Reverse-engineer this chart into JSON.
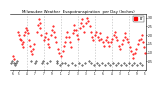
{
  "title": "Milwaukee Weather  Evapotranspiration  per Day (Inches)",
  "background_color": "#ffffff",
  "plot_bg_color": "#ffffff",
  "grid_color": "#bbbbbb",
  "x_min": 0,
  "x_max": 152,
  "y_min": 0.0,
  "y_max": 0.32,
  "y_ticks": [
    0.05,
    0.1,
    0.15,
    0.2,
    0.25,
    0.3
  ],
  "y_tick_labels": [
    ".05",
    ".10",
    ".15",
    ".20",
    ".25",
    ".30"
  ],
  "legend_label": "ET",
  "legend_color": "#ff0000",
  "red_data": [
    [
      3,
      0.08
    ],
    [
      4,
      0.06
    ],
    [
      9,
      0.22
    ],
    [
      10,
      0.2
    ],
    [
      11,
      0.18
    ],
    [
      12,
      0.17
    ],
    [
      13,
      0.15
    ],
    [
      14,
      0.13
    ],
    [
      15,
      0.16
    ],
    [
      16,
      0.2
    ],
    [
      17,
      0.22
    ],
    [
      18,
      0.24
    ],
    [
      19,
      0.23
    ],
    [
      20,
      0.21
    ],
    [
      21,
      0.17
    ],
    [
      22,
      0.14
    ],
    [
      23,
      0.11
    ],
    [
      25,
      0.09
    ],
    [
      26,
      0.12
    ],
    [
      27,
      0.15
    ],
    [
      30,
      0.22
    ],
    [
      31,
      0.26
    ],
    [
      32,
      0.29
    ],
    [
      33,
      0.27
    ],
    [
      34,
      0.24
    ],
    [
      35,
      0.2
    ],
    [
      38,
      0.17
    ],
    [
      39,
      0.19
    ],
    [
      40,
      0.21
    ],
    [
      42,
      0.18
    ],
    [
      43,
      0.15
    ],
    [
      44,
      0.13
    ],
    [
      46,
      0.2
    ],
    [
      47,
      0.23
    ],
    [
      48,
      0.25
    ],
    [
      49,
      0.22
    ],
    [
      50,
      0.19
    ],
    [
      51,
      0.16
    ],
    [
      54,
      0.12
    ],
    [
      55,
      0.1
    ],
    [
      57,
      0.08
    ],
    [
      59,
      0.11
    ],
    [
      60,
      0.14
    ],
    [
      61,
      0.16
    ],
    [
      63,
      0.19
    ],
    [
      64,
      0.22
    ],
    [
      66,
      0.19
    ],
    [
      67,
      0.16
    ],
    [
      68,
      0.13
    ],
    [
      70,
      0.21
    ],
    [
      71,
      0.23
    ],
    [
      72,
      0.26
    ],
    [
      74,
      0.23
    ],
    [
      75,
      0.2
    ],
    [
      76,
      0.18
    ],
    [
      78,
      0.24
    ],
    [
      79,
      0.27
    ],
    [
      80,
      0.29
    ],
    [
      82,
      0.25
    ],
    [
      83,
      0.22
    ],
    [
      85,
      0.27
    ],
    [
      86,
      0.3
    ],
    [
      87,
      0.28
    ],
    [
      89,
      0.25
    ],
    [
      90,
      0.22
    ],
    [
      92,
      0.19
    ],
    [
      93,
      0.17
    ],
    [
      95,
      0.2
    ],
    [
      96,
      0.22
    ],
    [
      98,
      0.19
    ],
    [
      99,
      0.17
    ],
    [
      101,
      0.21
    ],
    [
      102,
      0.18
    ],
    [
      104,
      0.16
    ],
    [
      105,
      0.14
    ],
    [
      107,
      0.17
    ],
    [
      108,
      0.19
    ],
    [
      110,
      0.16
    ],
    [
      111,
      0.14
    ],
    [
      113,
      0.16
    ],
    [
      114,
      0.18
    ],
    [
      116,
      0.2
    ],
    [
      117,
      0.22
    ],
    [
      119,
      0.19
    ],
    [
      120,
      0.17
    ],
    [
      122,
      0.14
    ],
    [
      123,
      0.12
    ],
    [
      125,
      0.15
    ],
    [
      126,
      0.17
    ],
    [
      128,
      0.19
    ],
    [
      129,
      0.21
    ],
    [
      131,
      0.18
    ],
    [
      132,
      0.16
    ],
    [
      134,
      0.13
    ],
    [
      135,
      0.11
    ],
    [
      137,
      0.09
    ],
    [
      138,
      0.07
    ],
    [
      140,
      0.1
    ],
    [
      141,
      0.12
    ],
    [
      143,
      0.15
    ],
    [
      144,
      0.17
    ],
    [
      146,
      0.18
    ],
    [
      147,
      0.2
    ],
    [
      149,
      0.16
    ],
    [
      150,
      0.13
    ],
    [
      151,
      0.1
    ]
  ],
  "black_data": [
    [
      1,
      0.04
    ],
    [
      2,
      0.05
    ],
    [
      5,
      0.04
    ],
    [
      6,
      0.03
    ],
    [
      7,
      0.04
    ],
    [
      8,
      0.05
    ],
    [
      24,
      0.05
    ],
    [
      28,
      0.04
    ],
    [
      29,
      0.05
    ],
    [
      36,
      0.04
    ],
    [
      37,
      0.05
    ],
    [
      41,
      0.04
    ],
    [
      45,
      0.05
    ],
    [
      52,
      0.04
    ],
    [
      53,
      0.05
    ],
    [
      56,
      0.03
    ],
    [
      58,
      0.04
    ],
    [
      62,
      0.04
    ],
    [
      65,
      0.03
    ],
    [
      69,
      0.04
    ],
    [
      73,
      0.03
    ],
    [
      77,
      0.04
    ],
    [
      81,
      0.03
    ],
    [
      84,
      0.04
    ],
    [
      88,
      0.05
    ],
    [
      91,
      0.04
    ],
    [
      94,
      0.03
    ],
    [
      97,
      0.04
    ],
    [
      100,
      0.03
    ],
    [
      103,
      0.04
    ],
    [
      106,
      0.03
    ],
    [
      109,
      0.04
    ],
    [
      112,
      0.03
    ],
    [
      115,
      0.04
    ],
    [
      118,
      0.03
    ],
    [
      121,
      0.04
    ],
    [
      124,
      0.03
    ],
    [
      127,
      0.04
    ],
    [
      130,
      0.03
    ],
    [
      133,
      0.04
    ],
    [
      136,
      0.03
    ],
    [
      139,
      0.04
    ],
    [
      142,
      0.03
    ],
    [
      145,
      0.04
    ],
    [
      148,
      0.03
    ]
  ],
  "vline_positions": [
    19,
    38,
    57,
    76,
    95,
    114,
    133
  ],
  "xtick_positions": [
    3,
    10,
    19,
    28,
    38,
    47,
    57,
    66,
    76,
    85,
    95,
    104,
    114,
    123,
    133,
    142,
    151
  ],
  "xtick_labels": [
    "6",
    "5",
    "4",
    "7",
    "7",
    "9",
    "1",
    "2",
    "3",
    "3",
    "1",
    "6",
    "4",
    "3",
    "1",
    "9",
    "5"
  ]
}
